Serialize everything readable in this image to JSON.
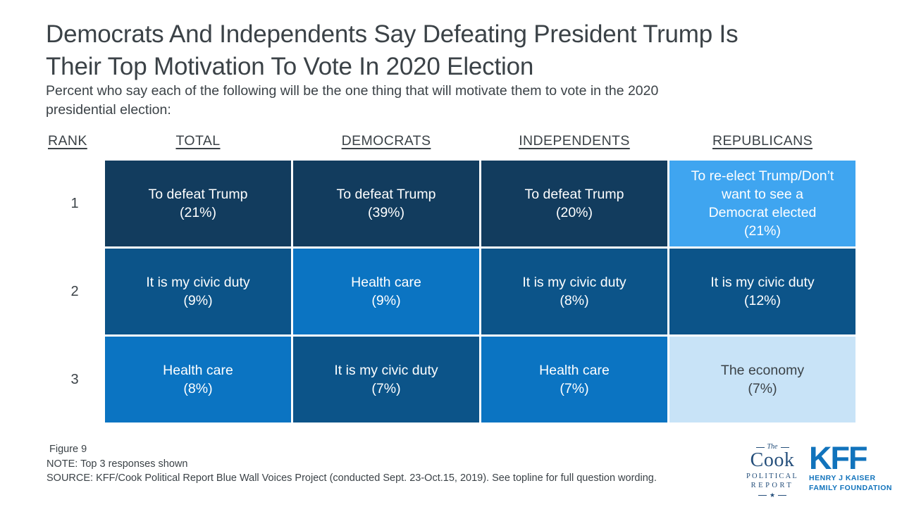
{
  "colors": {
    "text_dark": "#3B4247",
    "cell_defeat_trump": "#123C5E",
    "cell_civic_duty": "#0C5489",
    "cell_health_care": "#0B74C2",
    "cell_reelect_trump": "#3FA5F0",
    "cell_economy": "#C8E3F7",
    "cook_navy": "#254F7B",
    "kff_blue": "#1173BC"
  },
  "header": {
    "title": "Democrats And Independents Say Defeating President Trump Is\nTheir Top Motivation To Vote In 2020 Election",
    "subtitle": "Percent who say each of the following will be the one thing that will motivate them to vote in the 2020\npresidential election:"
  },
  "chart_data": {
    "type": "table",
    "title": "Democrats And Independents Say Defeating President Trump Is Their Top Motivation To Vote In 2020 Election",
    "subtitle": "Percent who say each of the following will be the one thing that will motivate them to vote in the 2020 presidential election:",
    "columns": [
      "RANK",
      "TOTAL",
      "DEMOCRATS",
      "INDEPENDENTS",
      "REPUBLICANS"
    ],
    "rows": [
      {
        "rank": "1",
        "cells": [
          {
            "label": "To defeat Trump",
            "pct": "(21%)",
            "value": 21,
            "bg": "#123C5E",
            "fg": "#FFFFFF"
          },
          {
            "label": "To defeat Trump",
            "pct": "(39%)",
            "value": 39,
            "bg": "#123C5E",
            "fg": "#FFFFFF"
          },
          {
            "label": "To defeat Trump",
            "pct": "(20%)",
            "value": 20,
            "bg": "#123C5E",
            "fg": "#FFFFFF"
          },
          {
            "label": "To re-elect Trump/Don’t\nwant to see a\nDemocrat elected",
            "pct": "(21%)",
            "value": 21,
            "bg": "#3FA5F0",
            "fg": "#FFFFFF"
          }
        ]
      },
      {
        "rank": "2",
        "cells": [
          {
            "label": "It is my civic duty",
            "pct": "(9%)",
            "value": 9,
            "bg": "#0C5489",
            "fg": "#FFFFFF"
          },
          {
            "label": "Health care",
            "pct": "(9%)",
            "value": 9,
            "bg": "#0B74C2",
            "fg": "#FFFFFF"
          },
          {
            "label": "It is my civic duty",
            "pct": "(8%)",
            "value": 8,
            "bg": "#0C5489",
            "fg": "#FFFFFF"
          },
          {
            "label": "It is my civic duty",
            "pct": "(12%)",
            "value": 12,
            "bg": "#0C5489",
            "fg": "#FFFFFF"
          }
        ]
      },
      {
        "rank": "3",
        "cells": [
          {
            "label": "Health care",
            "pct": "(8%)",
            "value": 8,
            "bg": "#0B74C2",
            "fg": "#FFFFFF"
          },
          {
            "label": "It is my civic duty",
            "pct": "(7%)",
            "value": 7,
            "bg": "#0C5489",
            "fg": "#FFFFFF"
          },
          {
            "label": "Health care",
            "pct": "(7%)",
            "value": 7,
            "bg": "#0B74C2",
            "fg": "#FFFFFF"
          },
          {
            "label": "The economy",
            "pct": "(7%)",
            "value": 7,
            "bg": "#C8E3F7",
            "fg": "#3B4247"
          }
        ]
      }
    ]
  },
  "footer": {
    "figure": "Figure 9",
    "note": "NOTE: Top 3 responses shown",
    "source": "SOURCE: KFF/Cook Political Report Blue Wall Voices Project (conducted Sept. 23-Oct.15, 2019). See topline for full question wording."
  },
  "logos": {
    "cook": {
      "the": "The",
      "name": "Cook",
      "line1": "POLITICAL",
      "line2": "REPORT",
      "star": "★"
    },
    "kff": {
      "initials": "KFF",
      "line1": "HENRY J KAISER",
      "line2": "FAMILY FOUNDATION"
    }
  }
}
